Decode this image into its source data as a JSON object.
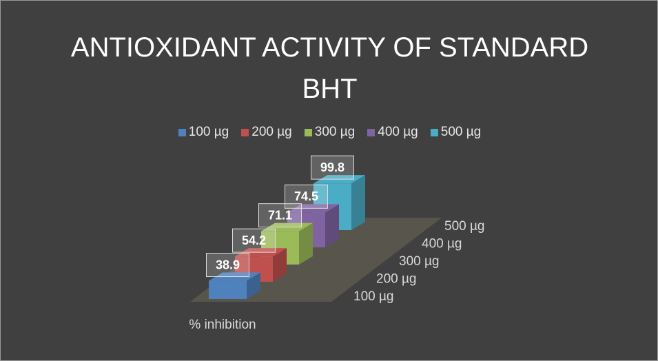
{
  "chart_data": {
    "type": "bar3d",
    "title": "ANTIOXIDANT ACTIVITY OF STANDARD BHT",
    "categories": [
      "% inhibition"
    ],
    "series": [
      {
        "name": "100 µg",
        "color": "#4f81bd",
        "values": [
          38.9
        ]
      },
      {
        "name": "200 µg",
        "color": "#c0504d",
        "values": [
          54.2
        ]
      },
      {
        "name": "300 µg",
        "color": "#9bbb59",
        "values": [
          71.1
        ]
      },
      {
        "name": "400 µg",
        "color": "#8064a2",
        "values": [
          74.5
        ]
      },
      {
        "name": "500 µg",
        "color": "#4bacc6",
        "values": [
          99.8
        ]
      }
    ]
  }
}
